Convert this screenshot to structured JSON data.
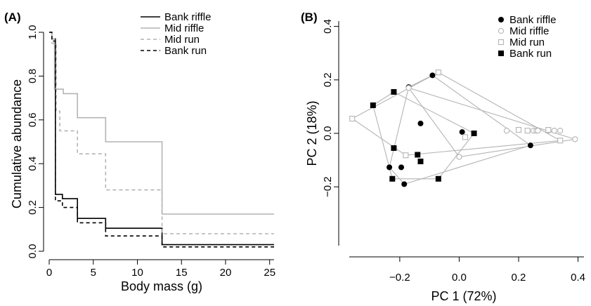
{
  "chart_data": [
    {
      "panel": "(A)",
      "type": "line",
      "xlabel": "Body mass (g)",
      "ylabel": "Cumulative abundance",
      "xlim": [
        0,
        25.5
      ],
      "ylim": [
        0,
        1.0
      ],
      "xticks": [
        "0",
        "5",
        "10",
        "15",
        "20",
        "25"
      ],
      "yticks": [
        "0.0",
        "0.2",
        "0.4",
        "0.6",
        "0.8",
        "1.0"
      ],
      "step": true,
      "legend_position": "top-right",
      "series": [
        {
          "name": "Bank riffle",
          "color": "#000000",
          "dash": "solid",
          "points": [
            [
              0,
              1.0
            ],
            [
              0.3,
              1.0
            ],
            [
              0.3,
              0.97
            ],
            [
              0.7,
              0.97
            ],
            [
              0.7,
              0.26
            ],
            [
              1.5,
              0.26
            ],
            [
              1.5,
              0.24
            ],
            [
              3.2,
              0.24
            ],
            [
              3.2,
              0.15
            ],
            [
              6.4,
              0.15
            ],
            [
              6.4,
              0.105
            ],
            [
              12.8,
              0.105
            ],
            [
              12.8,
              0.03
            ],
            [
              25.5,
              0.03
            ]
          ]
        },
        {
          "name": "Mid riffle",
          "color": "#b4b4b4",
          "dash": "solid",
          "points": [
            [
              0,
              1.0
            ],
            [
              0.3,
              1.0
            ],
            [
              0.3,
              0.97
            ],
            [
              0.6,
              0.97
            ],
            [
              0.6,
              0.74
            ],
            [
              1.6,
              0.74
            ],
            [
              1.6,
              0.72
            ],
            [
              3.2,
              0.72
            ],
            [
              3.2,
              0.61
            ],
            [
              6.4,
              0.61
            ],
            [
              6.4,
              0.5
            ],
            [
              12.8,
              0.5
            ],
            [
              12.8,
              0.17
            ],
            [
              25.5,
              0.17
            ]
          ]
        },
        {
          "name": "Mid run",
          "color": "#b4b4b4",
          "dash": "dashed",
          "points": [
            [
              0,
              1.0
            ],
            [
              0.3,
              1.0
            ],
            [
              0.3,
              0.95
            ],
            [
              0.8,
              0.95
            ],
            [
              0.8,
              0.64
            ],
            [
              1.2,
              0.64
            ],
            [
              1.2,
              0.55
            ],
            [
              3.2,
              0.55
            ],
            [
              3.2,
              0.445
            ],
            [
              6.4,
              0.445
            ],
            [
              6.4,
              0.28
            ],
            [
              12.8,
              0.28
            ],
            [
              12.8,
              0.08
            ],
            [
              25.5,
              0.08
            ]
          ]
        },
        {
          "name": "Bank run",
          "color": "#000000",
          "dash": "dashed",
          "points": [
            [
              0,
              1.0
            ],
            [
              0.3,
              1.0
            ],
            [
              0.3,
              0.96
            ],
            [
              0.7,
              0.96
            ],
            [
              0.7,
              0.23
            ],
            [
              1.5,
              0.23
            ],
            [
              1.5,
              0.2
            ],
            [
              3.2,
              0.2
            ],
            [
              3.2,
              0.13
            ],
            [
              6.4,
              0.13
            ],
            [
              6.4,
              0.07
            ],
            [
              12.8,
              0.07
            ],
            [
              12.8,
              0.02
            ],
            [
              25.5,
              0.02
            ]
          ]
        }
      ]
    },
    {
      "panel": "(B)",
      "type": "scatter",
      "xlabel": "PC 1 (72%)",
      "ylabel": "PC 2 (18%)",
      "xlim": [
        -0.37,
        0.42
      ],
      "ylim": [
        -0.42,
        0.42
      ],
      "xticks": [
        "−0.2",
        "0.0",
        "0.2",
        "0.4"
      ],
      "yticks": [
        "−0.2",
        "0.0",
        "0.2",
        "0.4"
      ],
      "hulls": true,
      "legend_position": "top-right",
      "series": [
        {
          "name": "Bank riffle",
          "marker": "filled-circle",
          "color": "#000000",
          "points": [
            [
              -0.09,
              0.217
            ],
            [
              -0.17,
              0.173
            ],
            [
              -0.13,
              0.037
            ],
            [
              0.01,
              0.005
            ],
            [
              0.24,
              -0.045
            ],
            [
              -0.235,
              -0.127
            ],
            [
              -0.195,
              -0.127
            ],
            [
              -0.185,
              -0.19
            ]
          ],
          "hull": [
            [
              -0.09,
              0.217
            ],
            [
              0.24,
              -0.045
            ],
            [
              -0.185,
              -0.19
            ],
            [
              -0.235,
              -0.127
            ],
            [
              -0.17,
              0.173
            ]
          ]
        },
        {
          "name": "Mid riffle",
          "marker": "open-circle",
          "color": "#b4b4b4",
          "points": [
            [
              0.16,
              0.01
            ],
            [
              0.25,
              0.01
            ],
            [
              0.26,
              0.01
            ],
            [
              0.265,
              0.01
            ],
            [
              0.3,
              0.01
            ],
            [
              0.32,
              0.01
            ],
            [
              0.34,
              0.01
            ],
            [
              0.39,
              -0.022
            ],
            [
              0.0,
              -0.088
            ],
            [
              -0.17,
              0.17
            ]
          ],
          "hull": [
            [
              -0.17,
              0.17
            ],
            [
              0.39,
              -0.022
            ],
            [
              0.0,
              -0.088
            ]
          ]
        },
        {
          "name": "Mid run",
          "marker": "open-square",
          "color": "#b4b4b4",
          "points": [
            [
              -0.07,
              0.228
            ],
            [
              -0.36,
              0.055
            ],
            [
              0.2,
              0.013
            ],
            [
              0.23,
              0.01
            ],
            [
              0.3,
              0.013
            ],
            [
              0.34,
              -0.027
            ],
            [
              0.02,
              -0.014
            ],
            [
              -0.18,
              -0.082
            ]
          ],
          "hull": [
            [
              -0.07,
              0.228
            ],
            [
              0.34,
              -0.027
            ],
            [
              -0.18,
              -0.082
            ],
            [
              -0.36,
              0.055
            ]
          ]
        },
        {
          "name": "Bank run",
          "marker": "filled-square",
          "color": "#000000",
          "points": [
            [
              -0.29,
              0.105
            ],
            [
              -0.22,
              0.155
            ],
            [
              0.05,
              0.0
            ],
            [
              -0.22,
              -0.055
            ],
            [
              -0.14,
              -0.08
            ],
            [
              -0.13,
              -0.105
            ],
            [
              -0.07,
              -0.17
            ],
            [
              -0.225,
              -0.17
            ]
          ],
          "hull": [
            [
              -0.29,
              0.105
            ],
            [
              -0.22,
              0.155
            ],
            [
              0.05,
              0.0
            ],
            [
              -0.07,
              -0.17
            ],
            [
              -0.225,
              -0.17
            ]
          ]
        }
      ]
    }
  ]
}
